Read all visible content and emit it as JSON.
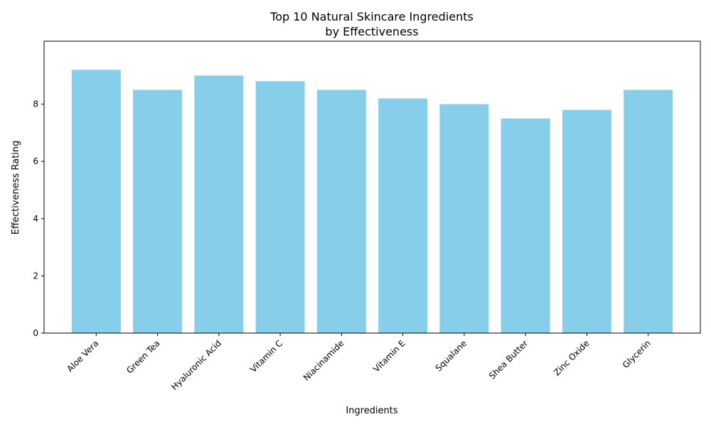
{
  "chart_data": {
    "type": "bar",
    "title_lines": [
      "Top 10 Natural Skincare Ingredients",
      "by Effectiveness"
    ],
    "xlabel": "Ingredients",
    "ylabel": "Effectiveness Rating",
    "categories": [
      "Aloe Vera",
      "Green Tea",
      "Hyaluronic Acid",
      "Vitamin C",
      "Niacinamide",
      "Vitamin E",
      "Squalane",
      "Shea Butter",
      "Zinc Oxide",
      "Glycerin"
    ],
    "values": [
      9.2,
      8.5,
      9.0,
      8.8,
      8.5,
      8.2,
      8.0,
      7.5,
      7.8,
      8.5
    ],
    "ylim": [
      0,
      10.2
    ],
    "yticks": [
      0,
      2,
      4,
      6,
      8
    ],
    "bar_color": "#87ceeb",
    "grid": false,
    "legend": "none"
  }
}
